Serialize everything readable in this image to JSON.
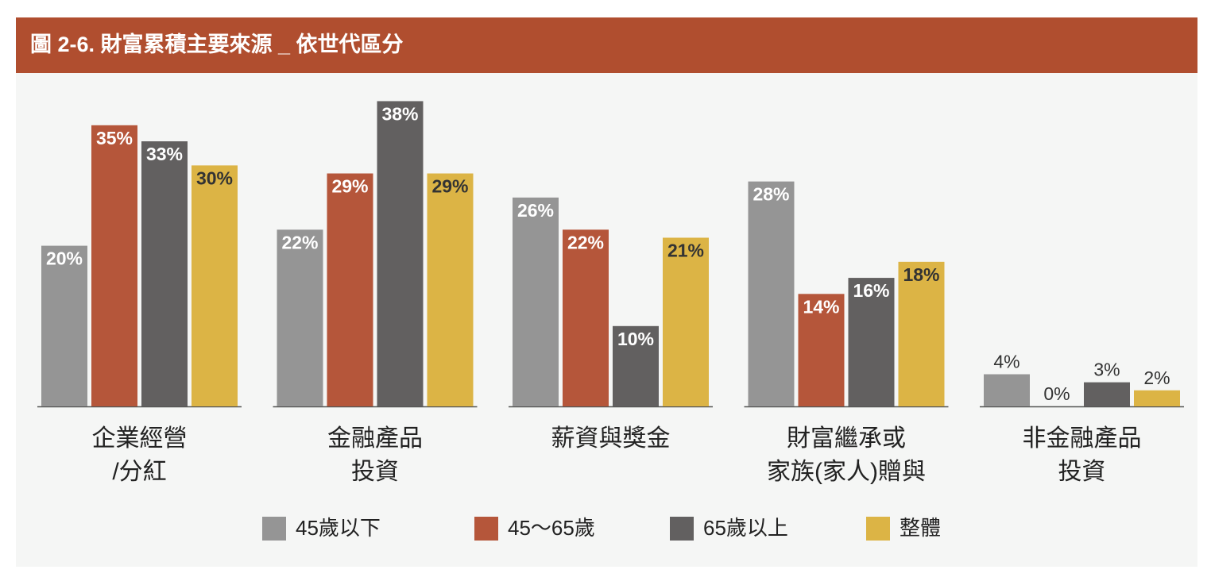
{
  "chart_data": {
    "type": "bar",
    "title": "圖 2-6. 財富累積主要來源 _ 依世代區分",
    "categories": [
      "企業經營\n/分紅",
      "金融產品\n投資",
      "薪資與獎金",
      "財富繼承或\n家族(家人)贈與",
      "非金融產品\n投資"
    ],
    "series": [
      {
        "name": "45歲以下",
        "color": "#959595",
        "values": [
          20,
          22,
          26,
          28,
          4
        ],
        "value_labels": [
          "20%",
          "22%",
          "26%",
          "28%",
          "4%"
        ]
      },
      {
        "name": "45～65歲",
        "color": "#b5563a",
        "values": [
          35,
          29,
          22,
          14,
          0
        ],
        "value_labels": [
          "35%",
          "29%",
          "22%",
          "14%",
          "0%"
        ]
      },
      {
        "name": "65歲以上",
        "color": "#626060",
        "values": [
          33,
          38,
          10,
          16,
          3
        ],
        "value_labels": [
          "33%",
          "38%",
          "10%",
          "16%",
          "3%"
        ]
      },
      {
        "name": "整體",
        "color": "#dcb445",
        "values": [
          30,
          29,
          21,
          18,
          2
        ],
        "value_labels": [
          "30%",
          "29%",
          "21%",
          "18%",
          "2%"
        ]
      }
    ]
  }
}
